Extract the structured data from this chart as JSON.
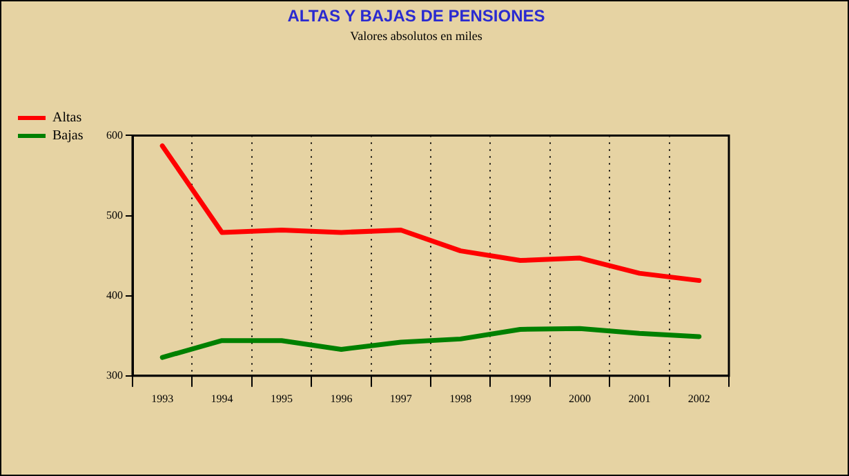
{
  "chart_data": {
    "type": "line",
    "title": "ALTAS Y BAJAS DE PENSIONES",
    "subtitle": "Valores absolutos en miles",
    "categories": [
      "1993",
      "1994",
      "1995",
      "1996",
      "1997",
      "1998",
      "1999",
      "2000",
      "2001",
      "2002"
    ],
    "series": [
      {
        "name": "Altas",
        "color": "#ff0000",
        "values": [
          587,
          479,
          482,
          479,
          482,
          456,
          444,
          447,
          428,
          419
        ]
      },
      {
        "name": "Bajas",
        "color": "#008000",
        "values": [
          323,
          344,
          344,
          333,
          342,
          346,
          358,
          359,
          353,
          349
        ]
      }
    ],
    "ylim": [
      300,
      600
    ],
    "yticks": [
      300,
      400,
      500,
      600
    ],
    "grid": "x",
    "legend": "top left",
    "marker": "none",
    "line_style": "solid"
  }
}
